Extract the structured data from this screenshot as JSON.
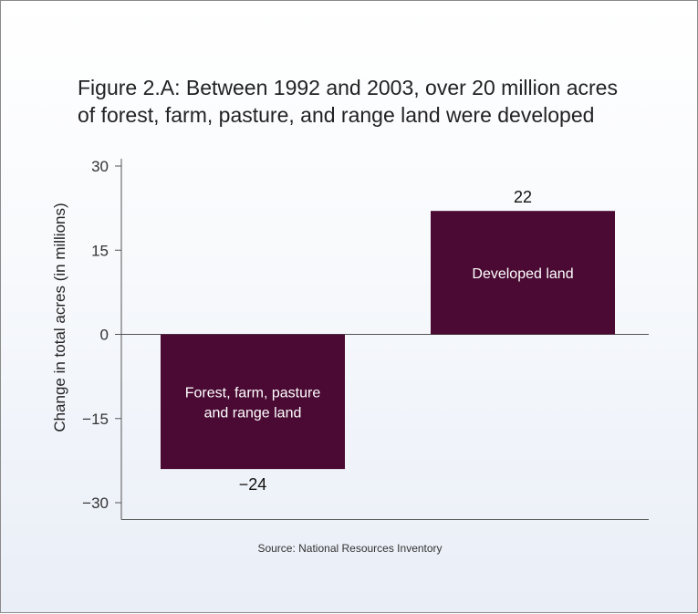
{
  "chart_data": {
    "type": "bar",
    "title_lines": [
      "Figure 2.A: Between 1992 and 2003, over 20 million acres",
      "of forest, farm, pasture, and range land were developed"
    ],
    "ylabel": "Change in total acres (in millions)",
    "yticks": [
      30,
      15,
      0,
      -15,
      -30
    ],
    "ytick_labels": [
      "30",
      "15",
      "0",
      "−15",
      "−30"
    ],
    "ylim": [
      -33,
      30
    ],
    "categories": [
      [
        "Forest, farm, pasture",
        "and range land"
      ],
      [
        "Developed land"
      ]
    ],
    "values": [
      -24,
      22
    ],
    "value_labels": [
      "−24",
      "22"
    ],
    "bar_color": "#4a0a33",
    "grid": false,
    "source": "Source: National Resources Inventory"
  }
}
